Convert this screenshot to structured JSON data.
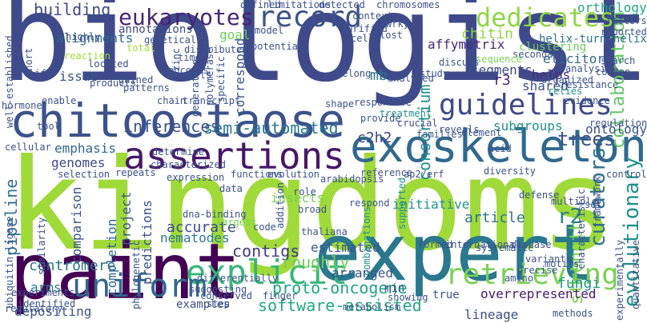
{
  "words": [
    {
      "text": "kingdoms",
      "color": "#a0da39"
    },
    {
      "text": "biologist",
      "color": "#3e4a89"
    },
    {
      "text": "expert",
      "color": "#2a788e"
    },
    {
      "text": "paint",
      "color": "#440154"
    },
    {
      "text": "chitooctaose",
      "color": "#3b528b"
    },
    {
      "text": "exoskeleton",
      "color": "#31688e"
    },
    {
      "text": "assertions",
      "color": "#481769"
    },
    {
      "text": "explicit",
      "color": "#35b779"
    },
    {
      "text": "uniform",
      "color": "#31688e"
    },
    {
      "text": "retrieving",
      "color": "#7ad151"
    },
    {
      "text": "record",
      "color": "#3b528b"
    },
    {
      "text": "guidelines",
      "color": "#3e4a89"
    },
    {
      "text": "dedicates",
      "color": "#90d743"
    },
    {
      "text": "eukaryotes",
      "color": "#482475"
    },
    {
      "text": "building",
      "color": "#3e4a89"
    },
    {
      "text": "collaboration",
      "color": "#5ec962"
    },
    {
      "text": "curators",
      "color": "#2c728e"
    },
    {
      "text": "evolutionary",
      "color": "#21918c"
    },
    {
      "text": "semi-automated",
      "color": "#2a788e"
    },
    {
      "text": "inferences",
      "color": "#3b528b"
    },
    {
      "text": "software-assisted",
      "color": "#22a884"
    },
    {
      "text": "consortium",
      "color": "#21918c"
    },
    {
      "text": "strengths",
      "color": "#7ad151"
    },
    {
      "text": "proto-oncogene",
      "color": "#20a386"
    },
    {
      "text": "nematodes",
      "color": "#2a788e"
    },
    {
      "text": "affymetrix",
      "color": "#482878"
    },
    {
      "text": "chitin",
      "color": "#90d743"
    },
    {
      "text": "alignments",
      "color": "#31688e"
    },
    {
      "text": "annotations",
      "color": "#3e4a89"
    },
    {
      "text": "accurate",
      "color": "#3e4a89"
    },
    {
      "text": "emphasis",
      "color": "#31688e"
    },
    {
      "text": "genomes",
      "color": "#3e4a89"
    },
    {
      "text": "pipeline",
      "color": "#2c728e"
    },
    {
      "text": "comparison",
      "color": "#3b528b"
    },
    {
      "text": "centromere",
      "color": "#2c728e"
    },
    {
      "text": "contigs",
      "color": "#443983"
    },
    {
      "text": "roughly",
      "color": "#6ece58"
    },
    {
      "text": "trees",
      "color": "#3b528b"
    },
    {
      "text": "c2h2",
      "color": "#414487"
    },
    {
      "text": "r2",
      "color": "#287c8e"
    },
    {
      "text": "r3",
      "color": "#482878"
    },
    {
      "text": "mb",
      "color": "#2a788e"
    },
    {
      "text": "segments",
      "color": "#3e4a89"
    },
    {
      "text": "helps",
      "color": "#472d7b"
    },
    {
      "text": "shared",
      "color": "#3b528b"
    },
    {
      "text": "elicitor",
      "color": "#31688e"
    },
    {
      "text": "subgroups",
      "color": "#21918c"
    },
    {
      "text": "ontology",
      "color": "#3b528b"
    },
    {
      "text": "orthology",
      "color": "#22a884"
    },
    {
      "text": "helix-turn-helix",
      "color": "#2c728e"
    },
    {
      "text": "predictions",
      "color": "#3b528b"
    },
    {
      "text": "completion",
      "color": "#31688e"
    },
    {
      "text": "project",
      "color": "#3b528b"
    },
    {
      "text": "insects",
      "color": "#7ad151"
    },
    {
      "text": "estimated",
      "color": "#3b528b"
    },
    {
      "text": "arranged",
      "color": "#3b528b"
    },
    {
      "text": "initiative",
      "color": "#21918c"
    },
    {
      "text": "article",
      "color": "#2c728e"
    },
    {
      "text": "fungi",
      "color": "#21918c"
    },
    {
      "text": "lineage",
      "color": "#3b528b"
    },
    {
      "text": "overrepresented",
      "color": "#481769"
    },
    {
      "text": "true",
      "color": "#3b528b"
    },
    {
      "text": "min",
      "color": "#3b528b"
    },
    {
      "text": "examples",
      "color": "#3b528b"
    },
    {
      "text": "depositing",
      "color": "#3b528b"
    },
    {
      "text": "arms",
      "color": "#2a788e"
    },
    {
      "text": "issue",
      "color": "#3b528b"
    },
    {
      "text": "goal",
      "color": "#6ece58"
    },
    {
      "text": "correspond",
      "color": "#3b528b"
    },
    {
      "text": "reaction",
      "color": "#9fda3a"
    },
    {
      "text": "ubiquitin-ligase",
      "color": "#3b528b"
    },
    {
      "text": "well-established",
      "color": "#3b528b"
    },
    {
      "text": "experimentally",
      "color": "#3b528b"
    },
    {
      "text": "quantitative",
      "color": "#3b528b"
    },
    {
      "text": "framework",
      "color": "#3b528b"
    },
    {
      "text": "control",
      "color": "#3b528b"
    },
    {
      "text": "limitations",
      "color": "#3b528b"
    },
    {
      "text": "detected",
      "color": "#3b528b"
    },
    {
      "text": "defined",
      "color": "#3b528b"
    },
    {
      "text": "chromosomes",
      "color": "#3b528b"
    },
    {
      "text": "context",
      "color": "#3b528b"
    },
    {
      "text": "wrky",
      "color": "#3b528b"
    },
    {
      "text": "purified",
      "color": "#3b528b"
    },
    {
      "text": "cell",
      "color": "#3b528b"
    },
    {
      "text": "lost",
      "color": "#3b528b"
    },
    {
      "text": "clustering",
      "color": "#6ece58"
    },
    {
      "text": "organized",
      "color": "#3b528b"
    },
    {
      "text": "secondary",
      "color": "#3b528b"
    },
    {
      "text": "analysis",
      "color": "#3b528b"
    },
    {
      "text": "sequence",
      "color": "#7ad151"
    },
    {
      "text": "discuss",
      "color": "#3b528b"
    },
    {
      "text": "study",
      "color": "#3b528b"
    },
    {
      "text": "belong",
      "color": "#3b528b"
    },
    {
      "text": "analyzed",
      "color": "#3b528b"
    },
    {
      "text": "search",
      "color": "#3b528b"
    },
    {
      "text": "common",
      "color": "#3b528b"
    },
    {
      "text": "relies",
      "color": "#21918c"
    },
    {
      "text": "resistance",
      "color": "#3b528b"
    },
    {
      "text": "evidence",
      "color": "#3b528b"
    },
    {
      "text": "factors",
      "color": "#3b528b"
    },
    {
      "text": "reported",
      "color": "#3b528b"
    },
    {
      "text": "regulation",
      "color": "#3b528b"
    },
    {
      "text": "responsive",
      "color": "#3b528b"
    },
    {
      "text": "treatment",
      "color": "#21918c"
    },
    {
      "text": "reveals",
      "color": "#3b528b"
    },
    {
      "text": "families",
      "color": "#3b528b"
    },
    {
      "text": "element",
      "color": "#3b528b"
    },
    {
      "text": "crucial",
      "color": "#3b528b"
    },
    {
      "text": "acid",
      "color": "#3b528b"
    },
    {
      "text": "shape",
      "color": "#3b528b"
    },
    {
      "text": "tool",
      "color": "#3b528b"
    },
    {
      "text": "enable",
      "color": "#3b528b"
    },
    {
      "text": "chain",
      "color": "#3b528b"
    },
    {
      "text": "transcript",
      "color": "#3b528b"
    },
    {
      "text": "repeats",
      "color": "#3b528b"
    },
    {
      "text": "functions",
      "color": "#3b528b"
    },
    {
      "text": "evolution",
      "color": "#3b528b"
    },
    {
      "text": "data",
      "color": "#3b528b"
    },
    {
      "text": "characterized",
      "color": "#3b528b"
    },
    {
      "text": "determine",
      "color": "#3b528b"
    },
    {
      "text": "reference",
      "color": "#3b528b"
    },
    {
      "text": "ap2/erf",
      "color": "#3b528b"
    },
    {
      "text": "diversity",
      "color": "#3b528b"
    },
    {
      "text": "respond",
      "color": "#3b528b"
    },
    {
      "text": "systematic",
      "color": "#3b528b"
    },
    {
      "text": "code",
      "color": "#3b528b"
    },
    {
      "text": "broad",
      "color": "#3b528b"
    },
    {
      "text": "role",
      "color": "#3b528b"
    },
    {
      "text": "combinations",
      "color": "#21918c"
    },
    {
      "text": "disease",
      "color": "#3b528b"
    },
    {
      "text": "multiple",
      "color": "#3b528b"
    },
    {
      "text": "defense",
      "color": "#3b528b"
    },
    {
      "text": "set",
      "color": "#3b528b"
    },
    {
      "text": "characteristic",
      "color": "#3b528b"
    },
    {
      "text": "variants",
      "color": "#3b528b"
    },
    {
      "text": "precise",
      "color": "#3b528b"
    },
    {
      "text": "amino",
      "color": "#3b528b"
    },
    {
      "text": "motifs",
      "color": "#3b528b"
    },
    {
      "text": "methods",
      "color": "#3b528b"
    },
    {
      "text": "international",
      "color": "#3b528b"
    },
    {
      "text": "formed",
      "color": "#3b528b"
    },
    {
      "text": "finger",
      "color": "#3b528b"
    },
    {
      "text": "largest",
      "color": "#7ad151"
    },
    {
      "text": "phylogenetic",
      "color": "#3b528b"
    },
    {
      "text": "similarity",
      "color": "#3b528b"
    },
    {
      "text": "conserved",
      "color": "#3b528b"
    },
    {
      "text": "step",
      "color": "#3b528b"
    },
    {
      "text": "suggesting",
      "color": "#3b528b"
    },
    {
      "text": "differentially",
      "color": "#3b528b"
    },
    {
      "text": "identified",
      "color": "#3b528b"
    },
    {
      "text": "metabolism",
      "color": "#3b528b"
    },
    {
      "text": "showing",
      "color": "#3b528b"
    },
    {
      "text": "provide",
      "color": "#3b528b"
    },
    {
      "text": "supported",
      "color": "#21918c"
    },
    {
      "text": "zinc",
      "color": "#3b528b"
    },
    {
      "text": "polymerase",
      "color": "#3b528b"
    },
    {
      "text": "specific",
      "color": "#3b528b"
    },
    {
      "text": "generation",
      "color": "#3b528b"
    },
    {
      "text": "walls",
      "color": "#3b528b"
    },
    {
      "text": "times",
      "color": "#3b528b"
    },
    {
      "text": "encodes",
      "color": "#3b528b"
    },
    {
      "text": "gained",
      "color": "#3b528b"
    },
    {
      "text": "products",
      "color": "#3b528b"
    },
    {
      "text": "located",
      "color": "#3b528b"
    },
    {
      "text": "life",
      "color": "#3b528b"
    },
    {
      "text": "short",
      "color": "#3b528b"
    },
    {
      "text": "highly",
      "color": "#3b528b"
    },
    {
      "text": "total",
      "color": "#9fda3a"
    },
    {
      "text": "distributed",
      "color": "#3b528b"
    },
    {
      "text": "genetically",
      "color": "#3b528b"
    },
    {
      "text": "model",
      "color": "#3b528b"
    },
    {
      "text": "hormone",
      "color": "#3b528b"
    },
    {
      "text": "cellular",
      "color": "#3b528b"
    },
    {
      "text": "selection",
      "color": "#3b528b"
    },
    {
      "text": "dna-binding",
      "color": "#3b528b"
    },
    {
      "text": "regulatory",
      "color": "#3b528b"
    },
    {
      "text": "experiments",
      "color": "#3b528b"
    },
    {
      "text": "expression",
      "color": "#3b528b"
    },
    {
      "text": "thaliana",
      "color": "#3b528b"
    },
    {
      "text": "potential",
      "color": "#3b528b"
    },
    {
      "text": "patterns",
      "color": "#3b528b"
    },
    {
      "text": "addition",
      "color": "#3b528b"
    },
    {
      "text": "arabidopsis",
      "color": "#3b528b"
    }
  ]
}
